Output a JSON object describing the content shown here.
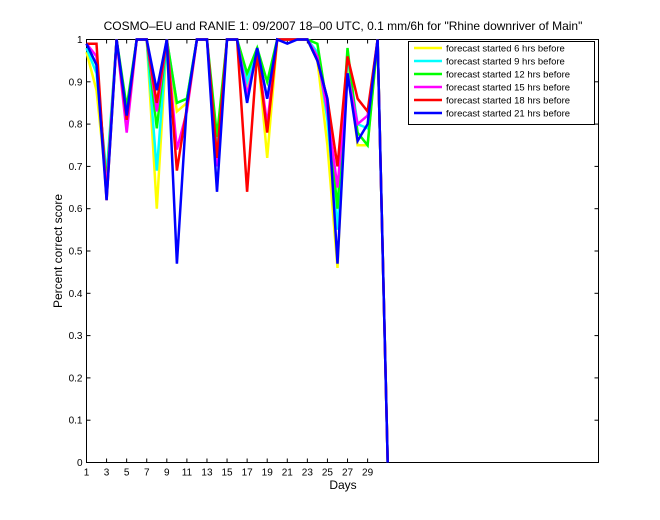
{
  "chart_data": {
    "type": "line",
    "title": "COSMO–EU and RANIE 1: 09/2007 18–00 UTC, 0.1 mm/6h for \"Rhine downriver of Main\"",
    "xlabel": "Days",
    "ylabel": "Percent correct score",
    "xlim": [
      1,
      52
    ],
    "ylim": [
      0,
      1
    ],
    "x_ticks": [
      1,
      3,
      5,
      7,
      9,
      11,
      13,
      15,
      17,
      19,
      21,
      23,
      25,
      27,
      29
    ],
    "y_ticks": [
      0,
      0.1,
      0.2,
      0.3,
      0.4,
      0.5,
      0.6,
      0.7,
      0.8,
      0.9,
      1
    ],
    "y_tick_labels": [
      "0",
      "0.1",
      "0.2",
      "0.3",
      "0.4",
      "0.5",
      "0.6",
      "0.7",
      "0.8",
      "0.9",
      "1"
    ],
    "grid": false,
    "legend_position": "top-right",
    "x": [
      1,
      2,
      3,
      4,
      5,
      6,
      7,
      8,
      9,
      10,
      11,
      12,
      13,
      14,
      15,
      16,
      17,
      18,
      19,
      20,
      21,
      22,
      23,
      24,
      25,
      26,
      27,
      28,
      29,
      30,
      31
    ],
    "series": [
      {
        "name": "forecast started 6 hrs before",
        "color": "#ffff00",
        "values": [
          0.97,
          0.88,
          0.65,
          1.0,
          0.82,
          1.0,
          1.0,
          0.6,
          1.0,
          0.83,
          0.85,
          1.0,
          1.0,
          0.73,
          1.0,
          1.0,
          0.88,
          0.98,
          0.72,
          1.0,
          1.0,
          1.0,
          1.0,
          0.95,
          0.75,
          0.46,
          0.95,
          0.75,
          0.75,
          1.0,
          0.0
        ]
      },
      {
        "name": "forecast started 9 hrs before",
        "color": "#00ffff",
        "values": [
          0.98,
          0.92,
          0.68,
          1.0,
          0.83,
          1.0,
          1.0,
          0.69,
          1.0,
          0.85,
          0.86,
          1.0,
          1.0,
          0.75,
          1.0,
          1.0,
          0.9,
          0.98,
          0.86,
          1.0,
          1.0,
          1.0,
          1.0,
          0.97,
          0.81,
          0.55,
          0.96,
          0.8,
          0.79,
          1.0,
          0.0
        ]
      },
      {
        "name": "forecast started 12 hrs before",
        "color": "#00ff00",
        "values": [
          0.99,
          0.94,
          0.66,
          1.0,
          0.84,
          1.0,
          1.0,
          0.79,
          1.0,
          0.85,
          0.86,
          1.0,
          1.0,
          0.77,
          1.0,
          1.0,
          0.92,
          0.98,
          0.9,
          1.0,
          1.0,
          1.0,
          1.0,
          0.99,
          0.84,
          0.6,
          0.98,
          0.78,
          0.75,
          1.0,
          0.0
        ]
      },
      {
        "name": "forecast started 15 hrs before",
        "color": "#ff00ff",
        "values": [
          0.99,
          0.96,
          0.64,
          1.0,
          0.78,
          1.0,
          1.0,
          0.83,
          1.0,
          0.74,
          0.83,
          1.0,
          1.0,
          0.7,
          1.0,
          1.0,
          0.87,
          0.97,
          0.8,
          1.0,
          1.0,
          1.0,
          1.0,
          0.96,
          0.83,
          0.65,
          0.92,
          0.8,
          0.82,
          1.0,
          0.0
        ]
      },
      {
        "name": "forecast started 18 hrs before",
        "color": "#ff0000",
        "values": [
          0.99,
          0.99,
          0.62,
          1.0,
          0.81,
          1.0,
          1.0,
          0.85,
          1.0,
          0.69,
          0.84,
          1.0,
          1.0,
          0.72,
          1.0,
          1.0,
          0.64,
          0.97,
          0.78,
          1.0,
          1.0,
          1.0,
          1.0,
          0.95,
          0.86,
          0.7,
          0.96,
          0.86,
          0.83,
          1.0,
          0.0
        ]
      },
      {
        "name": "forecast started 21 hrs before",
        "color": "#0000ff",
        "values": [
          0.99,
          0.94,
          0.62,
          1.0,
          0.82,
          1.0,
          1.0,
          0.88,
          1.0,
          0.47,
          0.85,
          1.0,
          1.0,
          0.64,
          1.0,
          1.0,
          0.85,
          0.98,
          0.86,
          1.0,
          0.99,
          1.0,
          1.0,
          0.95,
          0.86,
          0.47,
          0.92,
          0.76,
          0.8,
          1.0,
          0.0
        ]
      }
    ]
  }
}
